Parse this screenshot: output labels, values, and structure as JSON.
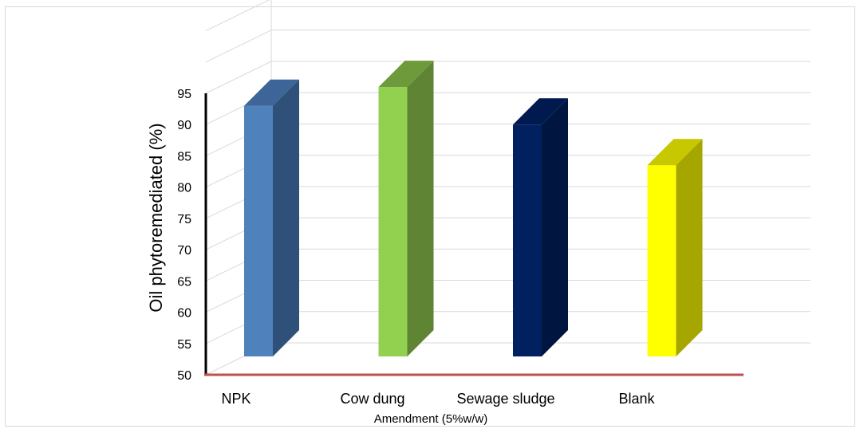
{
  "chart_data": {
    "type": "bar",
    "categories": [
      "NPK",
      "Cow dung",
      "Sewage sludge",
      "Blank"
    ],
    "values": [
      93,
      96,
      90,
      83.5
    ],
    "colors": [
      {
        "front": "#4f81bd",
        "side": "#2f5078",
        "top": "#3d6597"
      },
      {
        "front": "#92d050",
        "side": "#5e8434",
        "top": "#6e9a3c"
      },
      {
        "front": "#002060",
        "side": "#001640",
        "top": "#001a50"
      },
      {
        "front": "#ffff00",
        "side": "#a6a600",
        "top": "#c8c800"
      }
    ],
    "title": "",
    "xlabel": "Amendment (5%w/w)",
    "ylabel": "Oil phytoremediated (%)",
    "ylim": [
      50,
      95
    ],
    "yticks": [
      "50",
      "55",
      "60",
      "65",
      "70",
      "75",
      "80",
      "85",
      "90",
      "95"
    ],
    "grid": true
  }
}
